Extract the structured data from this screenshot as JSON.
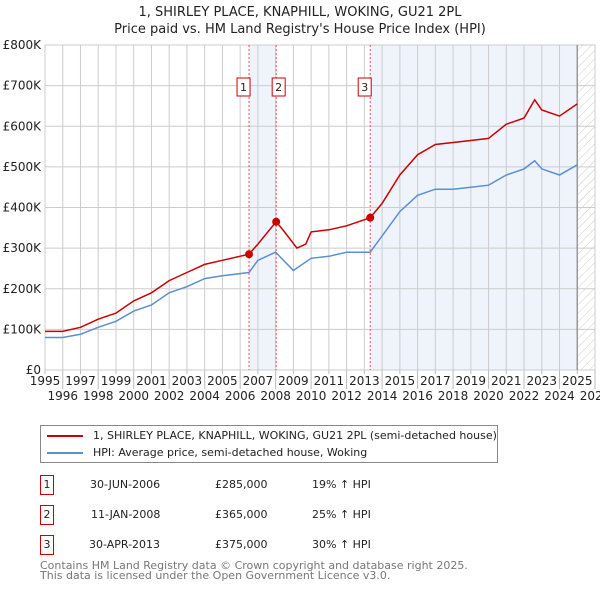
{
  "chart_data": {
    "type": "line",
    "title": "1, SHIRLEY PLACE, KNAPHILL, WOKING, GU21 2PL",
    "subtitle": "Price paid vs. HM Land Registry's House Price Index (HPI)",
    "xlim": [
      1995,
      2026
    ],
    "ylim": [
      0,
      800000
    ],
    "x_ticks": [
      "1995",
      "1996",
      "1997",
      "1998",
      "1999",
      "2000",
      "2001",
      "2002",
      "2003",
      "2004",
      "2005",
      "2006",
      "2007",
      "2008",
      "2009",
      "2010",
      "2011",
      "2012",
      "2013",
      "2014",
      "2015",
      "2016",
      "2017",
      "2018",
      "2019",
      "2020",
      "2021",
      "2022",
      "2023",
      "2024",
      "2025",
      "2026"
    ],
    "y_ticks": [
      {
        "v": 0,
        "l": "£0"
      },
      {
        "v": 100000,
        "l": "£100K"
      },
      {
        "v": 200000,
        "l": "£200K"
      },
      {
        "v": 300000,
        "l": "£300K"
      },
      {
        "v": 400000,
        "l": "£400K"
      },
      {
        "v": 500000,
        "l": "£500K"
      },
      {
        "v": 600000,
        "l": "£600K"
      },
      {
        "v": 700000,
        "l": "£700K"
      },
      {
        "v": 800000,
        "l": "£800K"
      }
    ],
    "series": [
      {
        "name": "1, SHIRLEY PLACE, KNAPHILL, WOKING, GU21 2PL (semi-detached house)",
        "color": "#cc0000",
        "x": [
          1995,
          1996,
          1997,
          1998,
          1999,
          2000,
          2001,
          2002,
          2003,
          2004,
          2005,
          2006.5,
          2007,
          2008.03,
          2008.5,
          2009.2,
          2009.7,
          2010,
          2011,
          2012,
          2013.33,
          2014,
          2015,
          2016,
          2017,
          2018,
          2019,
          2020,
          2021,
          2022,
          2022.6,
          2023,
          2024,
          2025
        ],
        "y": [
          95000,
          95000,
          105000,
          125000,
          140000,
          170000,
          190000,
          220000,
          240000,
          260000,
          270000,
          285000,
          310000,
          365000,
          340000,
          300000,
          310000,
          340000,
          345000,
          355000,
          375000,
          410000,
          480000,
          530000,
          555000,
          560000,
          565000,
          570000,
          605000,
          620000,
          665000,
          640000,
          625000,
          655000
        ]
      },
      {
        "name": "HPI: Average price, semi-detached house, Woking",
        "color": "#5b8fd0",
        "x": [
          1995,
          1996,
          1997,
          1998,
          1999,
          2000,
          2001,
          2002,
          2003,
          2004,
          2005,
          2006.5,
          2007,
          2008,
          2009,
          2010,
          2011,
          2012,
          2013.33,
          2014,
          2015,
          2016,
          2017,
          2018,
          2019,
          2020,
          2021,
          2022,
          2022.6,
          2023,
          2024,
          2025
        ],
        "y": [
          80000,
          80000,
          88000,
          105000,
          120000,
          145000,
          160000,
          190000,
          205000,
          225000,
          232000,
          240000,
          270000,
          290000,
          245000,
          275000,
          280000,
          290000,
          290000,
          330000,
          390000,
          430000,
          445000,
          445000,
          450000,
          455000,
          480000,
          495000,
          515000,
          495000,
          480000,
          505000
        ]
      }
    ],
    "sales": [
      {
        "n": "1",
        "x": 2006.5,
        "y": 285000,
        "date": "30-JUN-2006",
        "price": "£285,000",
        "hpi": "19% ↑ HPI"
      },
      {
        "n": "2",
        "x": 2008.03,
        "y": 365000,
        "date": "11-JAN-2008",
        "price": "£365,000",
        "hpi": "25% ↑ HPI"
      },
      {
        "n": "3",
        "x": 2013.33,
        "y": 375000,
        "date": "30-APR-2013",
        "price": "£375,000",
        "hpi": "30% ↑ HPI"
      }
    ],
    "data_end": 2025.0
  },
  "footer": {
    "line1": "Contains HM Land Registry data © Crown copyright and database right 2025.",
    "line2": "This data is licensed under the Open Government Licence v3.0."
  }
}
